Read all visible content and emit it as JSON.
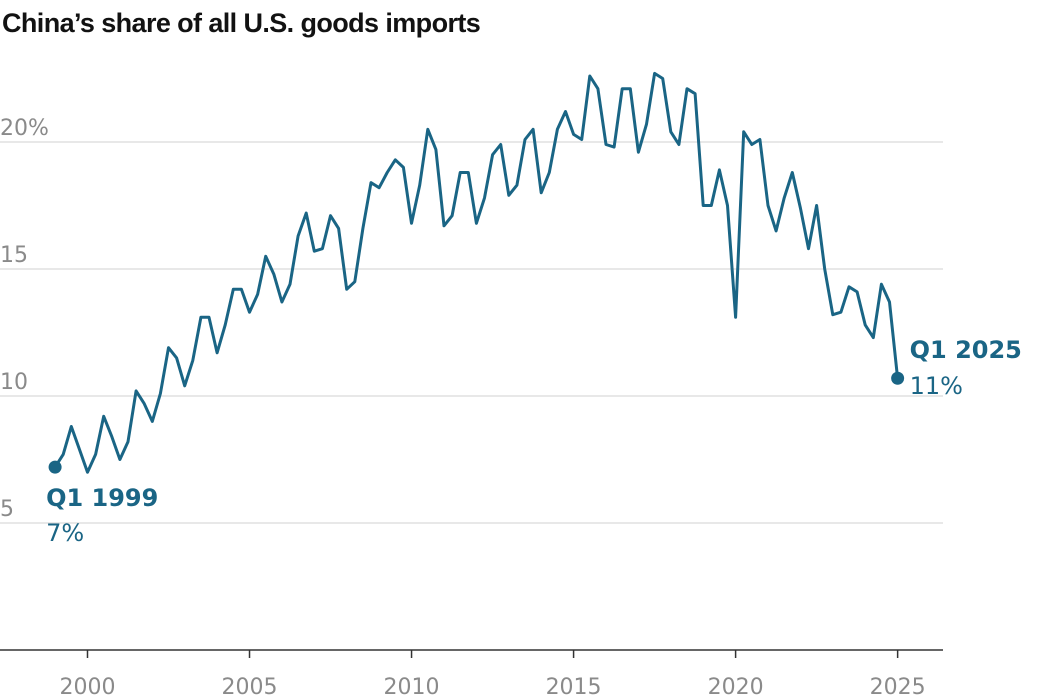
{
  "chart_data": {
    "type": "line",
    "title": "China’s share of all U.S. goods imports",
    "xlabel": "",
    "ylabel": "",
    "xlim": [
      1997.3,
      2026.4
    ],
    "ylim": [
      0,
      20
    ],
    "grid": true,
    "y_ticks": [
      {
        "value": 5,
        "label": "5"
      },
      {
        "value": 10,
        "label": "10"
      },
      {
        "value": 15,
        "label": "15"
      },
      {
        "value": 20,
        "label": "20%"
      }
    ],
    "x_ticks": [
      {
        "value": 2000,
        "label": "2000"
      },
      {
        "value": 2005,
        "label": "2005"
      },
      {
        "value": 2010,
        "label": "2010"
      },
      {
        "value": 2015,
        "label": "2015"
      },
      {
        "value": 2020,
        "label": "2020"
      },
      {
        "value": 2025,
        "label": "2025"
      }
    ],
    "series": [
      {
        "color": "#1a6585",
        "x": [
          1999.0,
          1999.25,
          1999.5,
          1999.75,
          2000.0,
          2000.25,
          2000.5,
          2000.75,
          2001.0,
          2001.25,
          2001.5,
          2001.75,
          2002.0,
          2002.25,
          2002.5,
          2002.75,
          2003.0,
          2003.25,
          2003.5,
          2003.75,
          2004.0,
          2004.25,
          2004.5,
          2004.75,
          2005.0,
          2005.25,
          2005.5,
          2005.75,
          2006.0,
          2006.25,
          2006.5,
          2006.75,
          2007.0,
          2007.25,
          2007.5,
          2007.75,
          2008.0,
          2008.25,
          2008.5,
          2008.75,
          2009.0,
          2009.25,
          2009.5,
          2009.75,
          2010.0,
          2010.25,
          2010.5,
          2010.75,
          2011.0,
          2011.25,
          2011.5,
          2011.75,
          2012.0,
          2012.25,
          2012.5,
          2012.75,
          2013.0,
          2013.25,
          2013.5,
          2013.75,
          2014.0,
          2014.25,
          2014.5,
          2014.75,
          2015.0,
          2015.25,
          2015.5,
          2015.75,
          2016.0,
          2016.25,
          2016.5,
          2016.75,
          2017.0,
          2017.25,
          2017.5,
          2017.75,
          2018.0,
          2018.25,
          2018.5,
          2018.75,
          2019.0,
          2019.25,
          2019.5,
          2019.75,
          2020.0,
          2020.25,
          2020.5,
          2020.75,
          2021.0,
          2021.25,
          2021.5,
          2021.75,
          2022.0,
          2022.25,
          2022.5,
          2022.75,
          2023.0,
          2023.25,
          2023.5,
          2023.75,
          2024.0,
          2024.25,
          2024.5,
          2024.75,
          2025.0
        ],
        "values": [
          7.2,
          7.7,
          8.8,
          7.9,
          7.0,
          7.7,
          9.2,
          8.4,
          7.5,
          8.2,
          10.2,
          9.7,
          9.0,
          10.1,
          11.9,
          11.5,
          10.4,
          11.4,
          13.1,
          13.1,
          11.7,
          12.8,
          14.2,
          14.2,
          13.3,
          14.0,
          15.5,
          14.8,
          13.7,
          14.4,
          16.3,
          17.2,
          15.7,
          15.8,
          17.1,
          16.6,
          14.2,
          14.5,
          16.6,
          18.4,
          18.2,
          18.8,
          19.3,
          19.0,
          16.8,
          18.3,
          20.5,
          19.7,
          16.7,
          17.1,
          18.8,
          18.8,
          16.8,
          17.8,
          19.5,
          19.9,
          17.9,
          18.3,
          20.1,
          20.5,
          18.0,
          18.8,
          20.5,
          21.2,
          20.3,
          20.1,
          22.6,
          22.1,
          19.9,
          19.8,
          22.1,
          22.1,
          19.6,
          20.7,
          22.7,
          22.5,
          20.4,
          19.9,
          22.1,
          21.9,
          17.5,
          17.5,
          18.9,
          17.5,
          13.1,
          20.4,
          19.9,
          20.1,
          17.5,
          16.5,
          17.8,
          18.8,
          17.4,
          15.8,
          17.5,
          15.0,
          13.2,
          13.3,
          14.3,
          14.1,
          12.8,
          12.3,
          14.4,
          13.7,
          10.7
        ]
      }
    ],
    "annotations": [
      {
        "id": "start",
        "label": "Q1 1999",
        "value_label": "7%",
        "x": 1999.0,
        "y": 7.2
      },
      {
        "id": "end",
        "label": "Q1 2025",
        "value_label": "11%",
        "x": 2025.0,
        "y": 10.7
      }
    ]
  }
}
